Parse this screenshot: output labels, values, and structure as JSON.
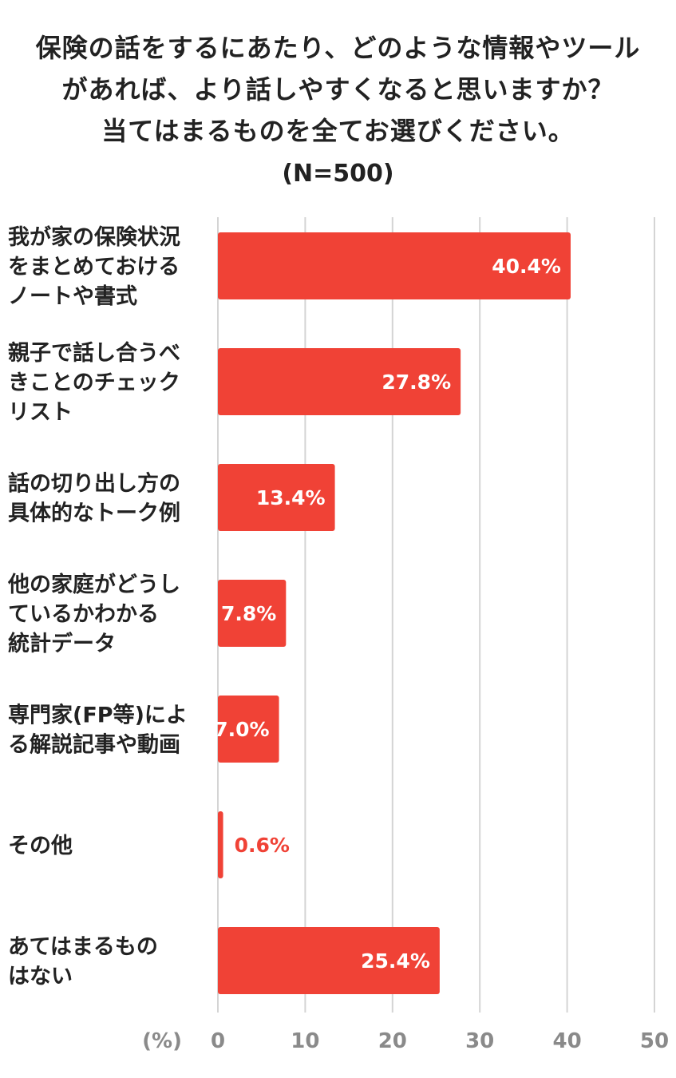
{
  "title_lines": [
    "保険の話をするにあたり、どのような情報やツール",
    "があれば、より話しやすくなると思いますか？",
    "当てはまるものを全てお選びください。"
  ],
  "sample_size": "(N=500)",
  "chart_data": {
    "type": "bar",
    "orientation": "horizontal",
    "categories": [
      [
        "我が家の保険状況",
        "をまとめておける",
        "ノートや書式"
      ],
      [
        "親子で話し合うべ",
        "きことのチェック",
        "リスト"
      ],
      [
        "話の切り出し方の",
        "具体的なトーク例"
      ],
      [
        "他の家庭がどうし",
        "ているかわかる",
        "統計データ"
      ],
      [
        "専門家(FP等)によ",
        "る解説記事や動画"
      ],
      [
        "その他"
      ],
      [
        "あてはまるもの",
        "はない"
      ]
    ],
    "values": [
      40.4,
      27.8,
      13.4,
      7.8,
      7.0,
      0.6,
      25.4
    ],
    "value_labels": [
      "40.4%",
      "27.8%",
      "13.4%",
      "7.8%",
      "7.0%",
      "0.6%",
      "25.4%"
    ],
    "xlim": [
      0,
      50
    ],
    "ticks": [
      0,
      10,
      20,
      30,
      40,
      50
    ],
    "tick_labels": [
      "0",
      "10",
      "20",
      "30",
      "40",
      "50"
    ],
    "unit_label": "(%)",
    "grid": true,
    "bar_color": "#f04236",
    "grid_color": "#d4d4d4",
    "tick_color": "#8a8a8a"
  }
}
